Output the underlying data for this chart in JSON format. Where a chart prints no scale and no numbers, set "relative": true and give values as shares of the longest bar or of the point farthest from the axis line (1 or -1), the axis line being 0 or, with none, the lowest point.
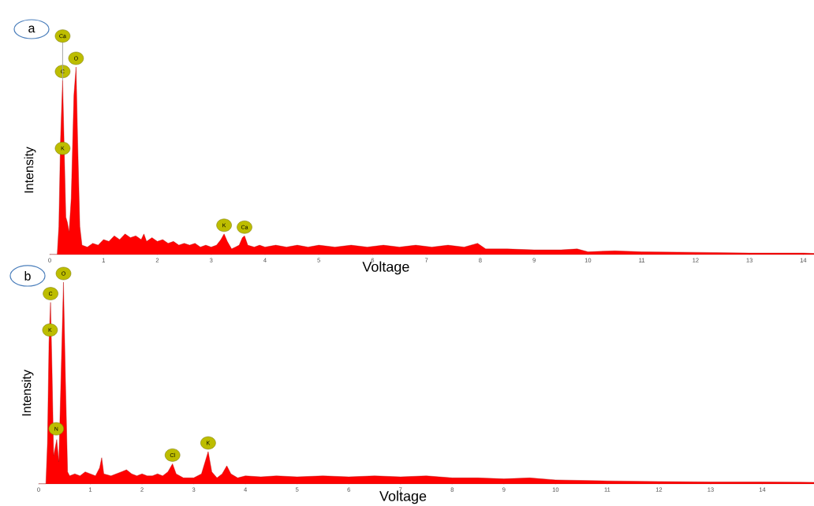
{
  "chart_data": [
    {
      "type": "area",
      "title": "a",
      "xlabel": "Voltage",
      "ylabel": "Intensity",
      "relative": true,
      "xlim": [
        0,
        14.2
      ],
      "xticks": [
        0,
        1,
        2,
        3,
        4,
        5,
        6,
        7,
        8,
        9,
        10,
        11,
        12,
        13,
        14
      ],
      "x": [
        0,
        0.14,
        0.17,
        0.2,
        0.24,
        0.27,
        0.3,
        0.33,
        0.36,
        0.4,
        0.45,
        0.49,
        0.52,
        0.56,
        0.6,
        0.7,
        0.8,
        0.9,
        1.0,
        1.1,
        1.2,
        1.3,
        1.4,
        1.5,
        1.6,
        1.7,
        1.75,
        1.8,
        1.9,
        2.0,
        2.1,
        2.2,
        2.3,
        2.4,
        2.5,
        2.6,
        2.7,
        2.8,
        2.9,
        3.0,
        3.1,
        3.18,
        3.24,
        3.3,
        3.38,
        3.45,
        3.52,
        3.58,
        3.62,
        3.68,
        3.8,
        3.9,
        4.0,
        4.2,
        4.4,
        4.6,
        4.8,
        5.0,
        5.3,
        5.6,
        5.9,
        6.2,
        6.5,
        6.8,
        7.1,
        7.4,
        7.7,
        7.95,
        8.1,
        8.5,
        9.0,
        9.5,
        9.8,
        10.0,
        10.5,
        11.0,
        12.0,
        13.0,
        14.0,
        14.2
      ],
      "series": [
        {
          "color": "#ff0000",
          "values": [
            0,
            0,
            0.15,
            0.6,
            0.93,
            null,
            0.2,
            0.17,
            0.12,
            0.3,
            0.85,
            1.0,
            0.6,
            0.15,
            0.05,
            0.04,
            0.06,
            0.05,
            0.08,
            0.07,
            0.1,
            0.08,
            0.11,
            0.09,
            0.1,
            0.08,
            0.11,
            0.07,
            0.09,
            0.07,
            0.08,
            0.06,
            0.07,
            0.05,
            0.06,
            0.05,
            0.06,
            0.04,
            0.05,
            0.04,
            0.05,
            0.08,
            0.11,
            0.07,
            0.03,
            0.04,
            0.05,
            0.09,
            0.1,
            0.05,
            0.04,
            0.05,
            0.04,
            0.05,
            0.04,
            0.05,
            0.04,
            0.05,
            0.04,
            0.05,
            0.04,
            0.05,
            0.04,
            0.05,
            0.04,
            0.05,
            0.04,
            0.06,
            0.03,
            0.03,
            0.025,
            0.025,
            0.03,
            0.015,
            0.02,
            0.015,
            0.012,
            0.008,
            0.008,
            0.006
          ]
        }
      ],
      "annotations": [
        {
          "text": "C",
          "x": 0.24,
          "y": 0.93
        },
        {
          "text": "Ca",
          "x": 0.24,
          "y": 0.93
        },
        {
          "text": "O",
          "x": 0.49,
          "y": 1.0
        },
        {
          "text": "K",
          "x": 0.24,
          "y": 0.52
        },
        {
          "text": "K",
          "x": 3.24,
          "y": 0.11
        },
        {
          "text": "Ca",
          "x": 3.62,
          "y": 0.1
        }
      ]
    },
    {
      "type": "area",
      "title": "b",
      "xlabel": "Voltage",
      "ylabel": "Intensity",
      "relative": true,
      "xlim": [
        0,
        15
      ],
      "xticks": [
        0,
        1,
        2,
        3,
        4,
        5,
        6,
        7,
        8,
        9,
        10,
        11,
        12,
        13,
        14
      ],
      "x": [
        0,
        0.14,
        0.17,
        0.2,
        0.23,
        0.26,
        0.29,
        0.32,
        0.35,
        0.39,
        0.43,
        0.48,
        0.52,
        0.56,
        0.6,
        0.7,
        0.8,
        0.9,
        1.0,
        1.1,
        1.18,
        1.22,
        1.26,
        1.4,
        1.5,
        1.6,
        1.7,
        1.8,
        1.9,
        2.0,
        2.1,
        2.2,
        2.3,
        2.4,
        2.5,
        2.59,
        2.66,
        2.8,
        3.0,
        3.15,
        3.28,
        3.35,
        3.45,
        3.55,
        3.64,
        3.72,
        3.85,
        4.0,
        4.3,
        4.6,
        5.0,
        5.5,
        6.0,
        6.5,
        7.0,
        7.5,
        8.0,
        8.5,
        9.0,
        9.5,
        10.0,
        11.0,
        12.0,
        13.0,
        14.0,
        15.0
      ],
      "series": [
        {
          "color": "#ff0000",
          "values": [
            0,
            0,
            0.2,
            0.7,
            0.9,
            0.55,
            0.14,
            null,
            0.22,
            0.11,
            0.5,
            1.0,
            0.5,
            0.06,
            0.04,
            0.05,
            0.04,
            0.06,
            0.05,
            0.04,
            0.08,
            0.13,
            0.05,
            0.04,
            0.05,
            0.06,
            0.07,
            0.05,
            0.04,
            0.05,
            0.04,
            0.04,
            0.05,
            0.04,
            0.06,
            0.1,
            0.05,
            0.03,
            0.03,
            0.05,
            0.16,
            0.06,
            0.03,
            0.05,
            0.09,
            0.05,
            0.03,
            0.04,
            0.035,
            0.04,
            0.035,
            0.04,
            0.035,
            0.04,
            0.035,
            0.04,
            0.03,
            0.03,
            0.025,
            0.03,
            0.02,
            0.015,
            0.012,
            0.01,
            0.01,
            0.008
          ]
        }
      ],
      "annotations": [
        {
          "text": "O",
          "x": 0.48,
          "y": 1.0
        },
        {
          "text": "C",
          "x": 0.23,
          "y": 0.9
        },
        {
          "text": "K",
          "x": 0.22,
          "y": 0.72
        },
        {
          "text": "N",
          "x": 0.34,
          "y": 0.23
        },
        {
          "text": "Cl",
          "x": 2.59,
          "y": 0.1
        },
        {
          "text": "K",
          "x": 3.28,
          "y": 0.16
        }
      ]
    }
  ]
}
